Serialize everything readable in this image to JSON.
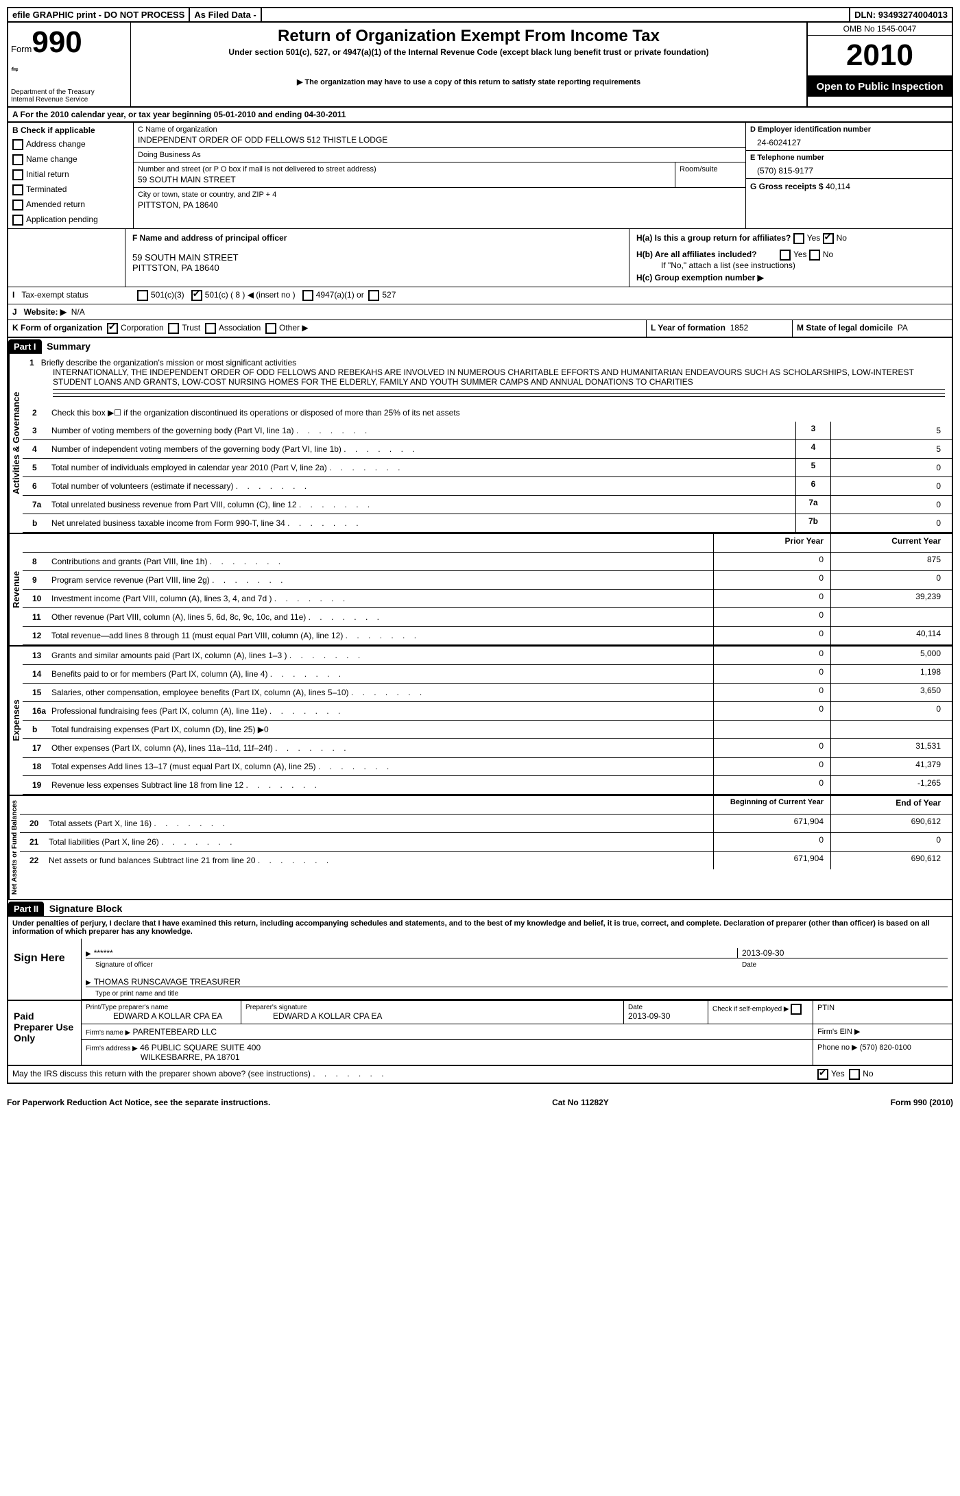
{
  "topbar": {
    "efile": "efile GRAPHIC print - DO NOT PROCESS",
    "asfiled": "As Filed Data -",
    "dln_label": "DLN:",
    "dln": "93493274004013"
  },
  "header": {
    "form_label": "Form",
    "form_num": "990",
    "dept": "Department of the Treasury\nInternal Revenue Service",
    "title": "Return of Organization Exempt From Income Tax",
    "subtitle": "Under section 501(c), 527, or 4947(a)(1) of the Internal Revenue Code (except black lung benefit trust or private foundation)",
    "note": "▶ The organization may have to use a copy of this return to satisfy state reporting requirements",
    "omb": "OMB No 1545-0047",
    "year": "2010",
    "open": "Open to Public Inspection"
  },
  "section_a": "A  For the 2010 calendar year, or tax year beginning 05-01-2010    and ending 04-30-2011",
  "section_b": {
    "title": "B  Check if applicable",
    "items": [
      "Address change",
      "Name change",
      "Initial return",
      "Terminated",
      "Amended return",
      "Application pending"
    ]
  },
  "section_c": {
    "name_label": "C Name of organization",
    "name": "INDEPENDENT ORDER OF ODD FELLOWS 512 THISTLE LODGE",
    "dba_label": "Doing Business As",
    "street_label": "Number and street (or P O  box if mail is not delivered to street address)",
    "street": "59 SOUTH MAIN STREET",
    "room_label": "Room/suite",
    "city_label": "City or town, state or country, and ZIP + 4",
    "city": "PITTSTON, PA  18640"
  },
  "section_d": {
    "label": "D Employer identification number",
    "val": "24-6024127"
  },
  "section_e": {
    "label": "E Telephone number",
    "val": "(570) 815-9177"
  },
  "section_g": {
    "label": "G Gross receipts $",
    "val": "40,114"
  },
  "section_f": {
    "label": "F    Name and address of principal officer",
    "addr1": "59 SOUTH MAIN STREET",
    "addr2": "PITTSTON, PA  18640"
  },
  "section_h": {
    "ha": "H(a)   Is this a group return for affiliates?",
    "hb": "H(b)  Are all affiliates included?",
    "hb_note": "If \"No,\" attach a list  (see instructions)",
    "hc": "H(c)   Group exemption number ▶",
    "yes": "Yes",
    "no": "No"
  },
  "section_i": {
    "label": "I    Tax-exempt status",
    "opts": [
      "501(c)(3)",
      "501(c) ( 8 ) ◀ (insert no )",
      "4947(a)(1) or",
      "527"
    ]
  },
  "section_j": {
    "label": "J   Website: ▶",
    "val": "N/A"
  },
  "section_k": {
    "label": "K Form of organization",
    "opts": [
      "Corporation",
      "Trust",
      "Association",
      "Other ▶"
    ],
    "l_label": "L Year of formation",
    "l_val": "1852",
    "m_label": "M State of legal domicile",
    "m_val": "PA"
  },
  "part1": {
    "header": "Part I",
    "title": "Summary",
    "side_ag": "Activities & Governance",
    "side_rev": "Revenue",
    "side_exp": "Expenses",
    "side_net": "Net Assets or Fund Balances",
    "line1_label": "Briefly describe the organization's mission or most significant activities",
    "line1_text": "INTERNATIONALLY, THE INDEPENDENT ORDER OF ODD FELLOWS AND REBEKAHS ARE INVOLVED IN NUMEROUS CHARITABLE EFFORTS AND HUMANITARIAN ENDEAVOURS SUCH AS SCHOLARSHIPS, LOW-INTEREST STUDENT LOANS AND GRANTS, LOW-COST NURSING HOMES FOR THE ELDERLY, FAMILY AND YOUTH SUMMER CAMPS AND ANNUAL DONATIONS TO CHARITIES",
    "line2": "Check this box ▶☐ if the organization discontinued its operations or disposed of more than 25% of its net assets",
    "rows_gov": [
      {
        "n": "3",
        "d": "Number of voting members of the governing body (Part VI, line 1a)",
        "b": "3",
        "v": "5"
      },
      {
        "n": "4",
        "d": "Number of independent voting members of the governing body (Part VI, line 1b)",
        "b": "4",
        "v": "5"
      },
      {
        "n": "5",
        "d": "Total number of individuals employed in calendar year 2010 (Part V, line 2a)",
        "b": "5",
        "v": "0"
      },
      {
        "n": "6",
        "d": "Total number of volunteers (estimate if necessary)",
        "b": "6",
        "v": "0"
      },
      {
        "n": "7a",
        "d": "Total unrelated business revenue from Part VIII, column (C), line 12",
        "b": "7a",
        "v": "0"
      },
      {
        "n": "b",
        "d": "Net unrelated business taxable income from Form 990-T, line 34",
        "b": "7b",
        "v": "0"
      }
    ],
    "col_prior": "Prior Year",
    "col_current": "Current Year",
    "rows_rev": [
      {
        "n": "8",
        "d": "Contributions and grants (Part VIII, line 1h)",
        "p": "0",
        "c": "875"
      },
      {
        "n": "9",
        "d": "Program service revenue (Part VIII, line 2g)",
        "p": "0",
        "c": "0"
      },
      {
        "n": "10",
        "d": "Investment income (Part VIII, column (A), lines 3, 4, and 7d )",
        "p": "0",
        "c": "39,239"
      },
      {
        "n": "11",
        "d": "Other revenue (Part VIII, column (A), lines 5, 6d, 8c, 9c, 10c, and 11e)",
        "p": "0",
        "c": ""
      },
      {
        "n": "12",
        "d": "Total revenue—add lines 8 through 11 (must equal Part VIII, column (A), line 12)",
        "p": "0",
        "c": "40,114"
      }
    ],
    "rows_exp": [
      {
        "n": "13",
        "d": "Grants and similar amounts paid (Part IX, column (A), lines 1–3 )",
        "p": "0",
        "c": "5,000"
      },
      {
        "n": "14",
        "d": "Benefits paid to or for members (Part IX, column (A), line 4)",
        "p": "0",
        "c": "1,198"
      },
      {
        "n": "15",
        "d": "Salaries, other compensation, employee benefits (Part IX, column (A), lines 5–10)",
        "p": "0",
        "c": "3,650"
      },
      {
        "n": "16a",
        "d": "Professional fundraising fees (Part IX, column (A), line 11e)",
        "p": "0",
        "c": "0"
      },
      {
        "n": "b",
        "d": "Total fundraising expenses (Part IX, column (D), line 25) ▶0",
        "p": "",
        "c": ""
      },
      {
        "n": "17",
        "d": "Other expenses (Part IX, column (A), lines 11a–11d, 11f–24f)",
        "p": "0",
        "c": "31,531"
      },
      {
        "n": "18",
        "d": "Total expenses  Add lines 13–17 (must equal Part IX, column (A), line 25)",
        "p": "0",
        "c": "41,379"
      },
      {
        "n": "19",
        "d": "Revenue less expenses  Subtract line 18 from line 12",
        "p": "0",
        "c": "-1,265"
      }
    ],
    "col_begin": "Beginning of Current Year",
    "col_end": "End of Year",
    "rows_net": [
      {
        "n": "20",
        "d": "Total assets (Part X, line 16)",
        "p": "671,904",
        "c": "690,612"
      },
      {
        "n": "21",
        "d": "Total liabilities (Part X, line 26)",
        "p": "0",
        "c": "0"
      },
      {
        "n": "22",
        "d": "Net assets or fund balances  Subtract line 21 from line 20",
        "p": "671,904",
        "c": "690,612"
      }
    ]
  },
  "part2": {
    "header": "Part II",
    "title": "Signature Block",
    "perjury": "Under penalties of perjury, I declare that I have examined this return, including accompanying schedules and statements, and to the best of my knowledge and belief, it is true, correct, and complete. Declaration of preparer (other than officer) is based on all information of which preparer has any knowledge.",
    "sign_here": "Sign Here",
    "sig_stars": "******",
    "sig_officer": "Signature of officer",
    "sig_date": "2013-09-30",
    "date_label": "Date",
    "sig_name": "THOMAS RUNSCAVAGE TREASURER",
    "sig_type": "Type or print name and title",
    "paid": "Paid Preparer Use Only",
    "prep_name_label": "Print/Type preparer's name",
    "prep_name": "EDWARD A KOLLAR CPA EA",
    "prep_sig_label": "Preparer's signature",
    "prep_sig": "EDWARD A KOLLAR CPA EA",
    "prep_date_label": "Date",
    "prep_date": "2013-09-30",
    "self_emp": "Check if self-employed ▶",
    "ptin": "PTIN",
    "firm_name_label": "Firm's name  ▶",
    "firm_name": "PARENTEBEARD LLC",
    "firm_ein": "Firm's EIN  ▶",
    "firm_addr_label": "Firm's address ▶",
    "firm_addr": "46 PUBLIC SQUARE SUITE 400",
    "firm_city": "WILKESBARRE, PA  18701",
    "phone_label": "Phone no  ▶",
    "phone": "(570) 820-0100",
    "discuss": "May the IRS discuss this return with the preparer shown above? (see instructions)"
  },
  "footer": {
    "left": "For Paperwork Reduction Act Notice, see the separate instructions.",
    "center": "Cat No 11282Y",
    "right": "Form 990 (2010)"
  }
}
